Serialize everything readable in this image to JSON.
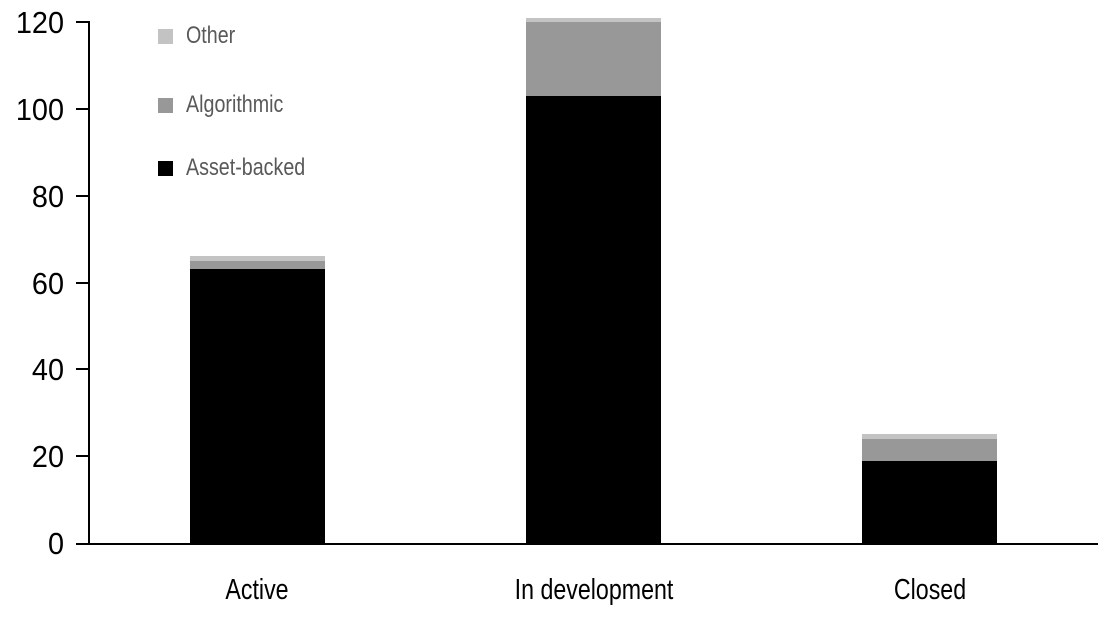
{
  "chart_data": {
    "type": "bar",
    "stacked": true,
    "title": "",
    "xlabel": "",
    "ylabel": "",
    "categories": [
      "Active",
      "In development",
      "Closed"
    ],
    "series": [
      {
        "name": "Asset-backed",
        "color": "#000000",
        "values": [
          63,
          103,
          19
        ]
      },
      {
        "name": "Algorithmic",
        "color": "#989898",
        "values": [
          2,
          17,
          5
        ]
      },
      {
        "name": "Other",
        "color": "#c3c3c3",
        "values": [
          1,
          1,
          1
        ]
      }
    ],
    "stack_totals": [
      66,
      121,
      25
    ],
    "ylim": [
      0,
      120
    ],
    "y_ticks": [
      0,
      20,
      40,
      60,
      80,
      100,
      120
    ],
    "grid": false,
    "legend": {
      "position": "top-left",
      "entries": [
        "Other",
        "Algorithmic",
        "Asset-backed"
      ]
    },
    "colors": {
      "axis": "#000000",
      "tick_label_text": "#000000",
      "category_label_text": "#000000",
      "legend_text": "#595959",
      "background": "#ffffff"
    }
  }
}
